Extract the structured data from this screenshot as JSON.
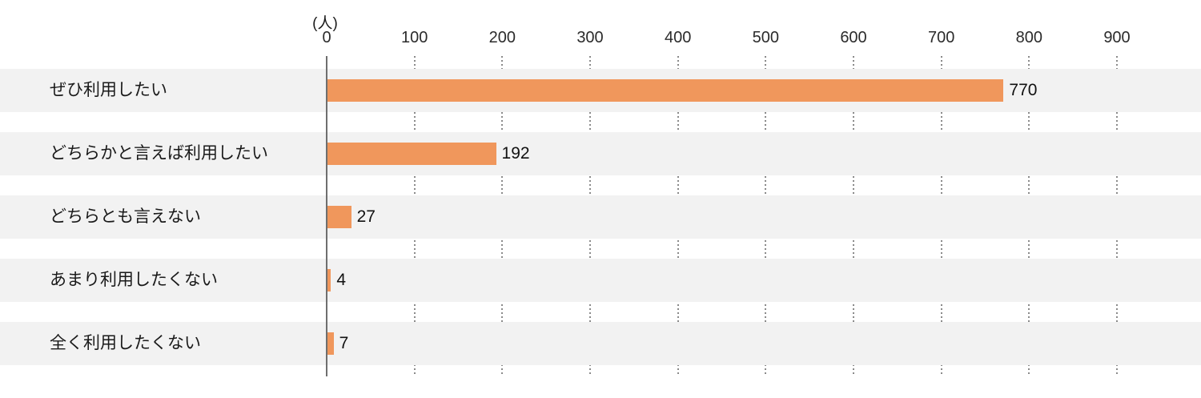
{
  "chart_data": {
    "type": "bar",
    "orientation": "horizontal",
    "title": "",
    "unit_label": "(人)",
    "categories": [
      "ぜひ利用したい",
      "どちらかと言えば利用したい",
      "どちらとも言えない",
      "あまり利用したくない",
      "全く利用したくない"
    ],
    "values": [
      770,
      192,
      27,
      4,
      7
    ],
    "value_labels": [
      "770",
      "192",
      "27",
      "4",
      "7"
    ],
    "xlim": [
      0,
      900
    ],
    "x_ticks": [
      0,
      100,
      200,
      300,
      400,
      500,
      600,
      700,
      800,
      900
    ],
    "grid": "vertical-dotted-in-row-gaps",
    "legend_position": "none",
    "colors": {
      "bar": "#F0975C",
      "row_band": "#F2F2F2",
      "axis_line": "#6E6E6E",
      "grid_line": "#8A8A8A",
      "text": "#1A1A1A"
    }
  }
}
